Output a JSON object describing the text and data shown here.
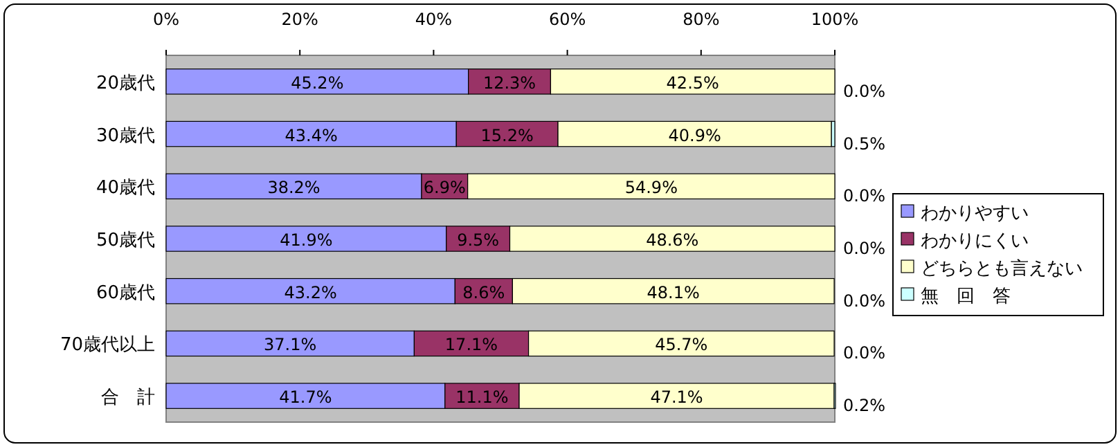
{
  "chart_data": {
    "type": "bar",
    "orientation": "horizontal",
    "stacked": true,
    "categories": [
      "20歳代",
      "30歳代",
      "40歳代",
      "50歳代",
      "60歳代",
      "70歳代以上",
      "合　計"
    ],
    "series": [
      {
        "name": "わかりやすい",
        "color": "#9999ff",
        "values": [
          45.2,
          43.4,
          38.2,
          41.9,
          43.2,
          37.1,
          41.7
        ],
        "value_labels": [
          "45.2%",
          "43.4%",
          "38.2%",
          "41.9%",
          "43.2%",
          "37.1%",
          "41.7%"
        ]
      },
      {
        "name": "わかりにくい",
        "color": "#993366",
        "values": [
          12.3,
          15.2,
          6.9,
          9.5,
          8.6,
          17.1,
          11.1
        ],
        "value_labels": [
          "12.3%",
          "15.2%",
          "6.9%",
          "9.5%",
          "8.6%",
          "17.1%",
          "11.1%"
        ]
      },
      {
        "name": "どちらとも言えない",
        "color": "#ffffcc",
        "values": [
          42.5,
          40.9,
          54.9,
          48.6,
          48.1,
          45.7,
          47.1
        ],
        "value_labels": [
          "42.5%",
          "40.9%",
          "54.9%",
          "48.6%",
          "48.1%",
          "45.7%",
          "47.1%"
        ]
      },
      {
        "name": "無　回　答",
        "color": "#ccffff",
        "values": [
          0.0,
          0.5,
          0.0,
          0.0,
          0.0,
          0.0,
          0.2
        ],
        "value_labels": [
          "0.0%",
          "0.5%",
          "0.0%",
          "0.0%",
          "0.0%",
          "0.0%",
          "0.2%"
        ]
      }
    ],
    "xlim": [
      0,
      100
    ],
    "xticks": [
      {
        "value": 0,
        "label": "0%"
      },
      {
        "value": 20,
        "label": "20%"
      },
      {
        "value": 40,
        "label": "40%"
      },
      {
        "value": 60,
        "label": "60%"
      },
      {
        "value": 80,
        "label": "80%"
      },
      {
        "value": 100,
        "label": "100%"
      }
    ],
    "legend": "right"
  }
}
